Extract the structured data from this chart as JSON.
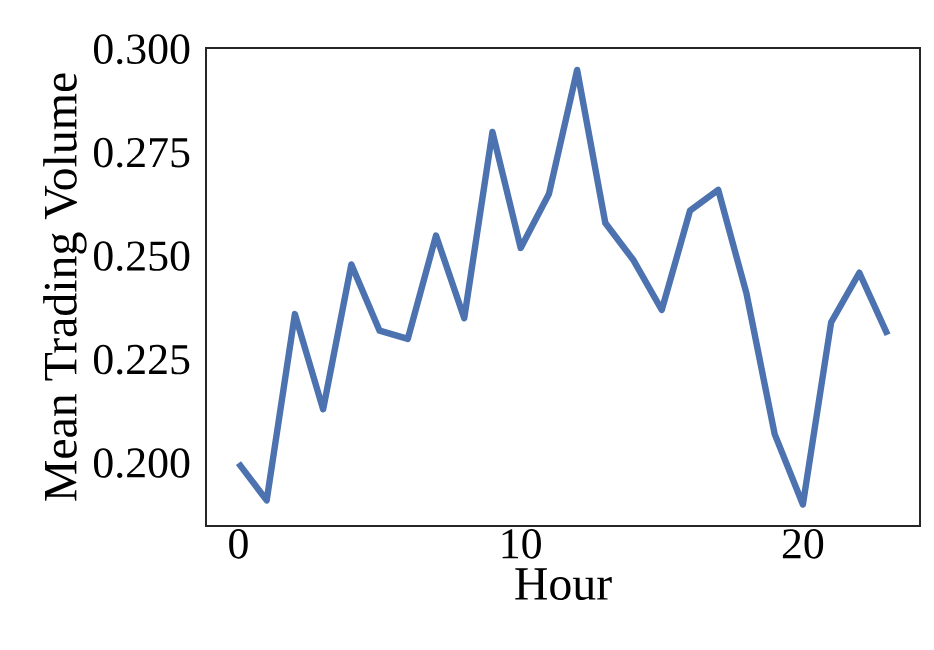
{
  "chart_data": {
    "type": "line",
    "xlabel": "Hour",
    "ylabel": "Mean Trading Volume",
    "x": [
      0,
      1,
      2,
      3,
      4,
      5,
      6,
      7,
      8,
      9,
      10,
      11,
      12,
      13,
      14,
      15,
      16,
      17,
      18,
      19,
      20,
      21,
      22,
      23
    ],
    "values": [
      0.2,
      0.191,
      0.236,
      0.213,
      0.248,
      0.232,
      0.23,
      0.255,
      0.235,
      0.28,
      0.252,
      0.265,
      0.295,
      0.258,
      0.249,
      0.237,
      0.261,
      0.266,
      0.241,
      0.207,
      0.19,
      0.234,
      0.246,
      0.231
    ],
    "color": "#4c72b0",
    "xlim": [
      -1.15,
      24.15
    ],
    "ylim": [
      0.1848,
      0.3003
    ],
    "xticks": [
      0,
      10,
      20
    ],
    "yticks": [
      {
        "value": 0.2,
        "label": "0.200"
      },
      {
        "value": 0.225,
        "label": "0.225"
      },
      {
        "value": 0.25,
        "label": "0.250"
      },
      {
        "value": 0.275,
        "label": "0.275"
      },
      {
        "value": 0.3,
        "label": "0.300"
      }
    ],
    "grid": false,
    "marker": "none",
    "line_style": "solid"
  }
}
